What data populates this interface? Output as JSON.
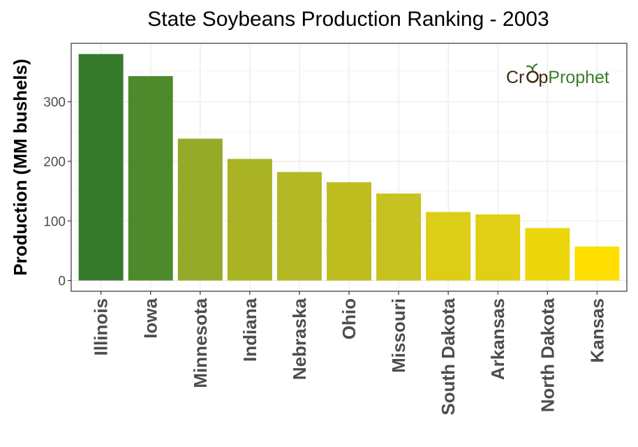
{
  "chart_data": {
    "type": "bar",
    "title": "State Soybeans Production Ranking - 2003",
    "xlabel": "",
    "ylabel": "Production (MM bushels)",
    "categories": [
      "Illinois",
      "Iowa",
      "Minnesota",
      "Indiana",
      "Nebraska",
      "Ohio",
      "Missouri",
      "South Dakota",
      "Arkansas",
      "North Dakota",
      "Kansas"
    ],
    "values": [
      380,
      343,
      238,
      204,
      182,
      165,
      146,
      115,
      111,
      88,
      57
    ],
    "ylim": [
      -18,
      398
    ],
    "yticks": [
      0,
      100,
      200,
      300
    ],
    "grid": true,
    "legend": "none",
    "colors": [
      "#367a2c",
      "#4e8a2c",
      "#94aa28",
      "#a9b324",
      "#b3b824",
      "#bebd20",
      "#c7c21f",
      "#dccd16",
      "#e0cf14",
      "#eed60d",
      "#ffde00"
    ]
  },
  "watermark": {
    "part1": "Cr",
    "part2": "p",
    "part3": "Prophet",
    "dark_color": "#3d2a12",
    "green_color": "#3a7d2a"
  }
}
